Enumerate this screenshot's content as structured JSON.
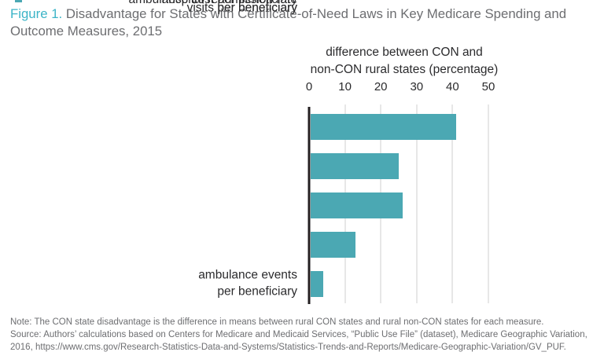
{
  "page": {
    "title_prefix": "Figure 1.",
    "title_rest": " Disadvantage for States with Certificate-of-Need Laws in Key Medicare Spending and Outcome Measures, 2015"
  },
  "chart_data": {
    "type": "bar",
    "orientation": "horizontal",
    "title": "Figure 1. Disadvantage for States with Certificate-of-Need Laws in Key Medicare Spending and Outcome Measures, 2015",
    "axis_title": "difference between CON and\nnon-CON rural states (percentage)",
    "categories": [
      "ambulance events\nper beneficiary",
      "ambulance cost per beneficiary",
      "emergency department\nvisits per beneficiary",
      "hospital readmission rate",
      "Medicare spending\nper beneficiary"
    ],
    "values": [
      41,
      25,
      26,
      13,
      4
    ],
    "ticks": [
      0,
      10,
      20,
      30,
      40,
      50
    ],
    "xlim": [
      0,
      52
    ],
    "grid": true,
    "legend": "none",
    "bar_color": "#4BA8B3"
  },
  "footer": {
    "note": "Note: The CON state disadvantage is the difference in means between rural CON states and rural non-CON states for each measure.",
    "source": "Source: Authors’ calculations based on Centers for Medicare and Medicaid Services, “Public Use File” (dataset), Medicare Geographic Variation, 2016, https://www.cms.gov/Research-Statistics-Data-and-Systems/Statistics-Trends-and-Reports/Medicare-Geographic-Variation/GV_PUF."
  },
  "colors": {
    "accent_teal": "#4BA8B3",
    "title_teal": "#3CB4C7",
    "text_dark": "#2B2B2D",
    "text_gray": "#6D6E71",
    "gridline": "#E7E7E7",
    "axis_line": "#231F20"
  }
}
